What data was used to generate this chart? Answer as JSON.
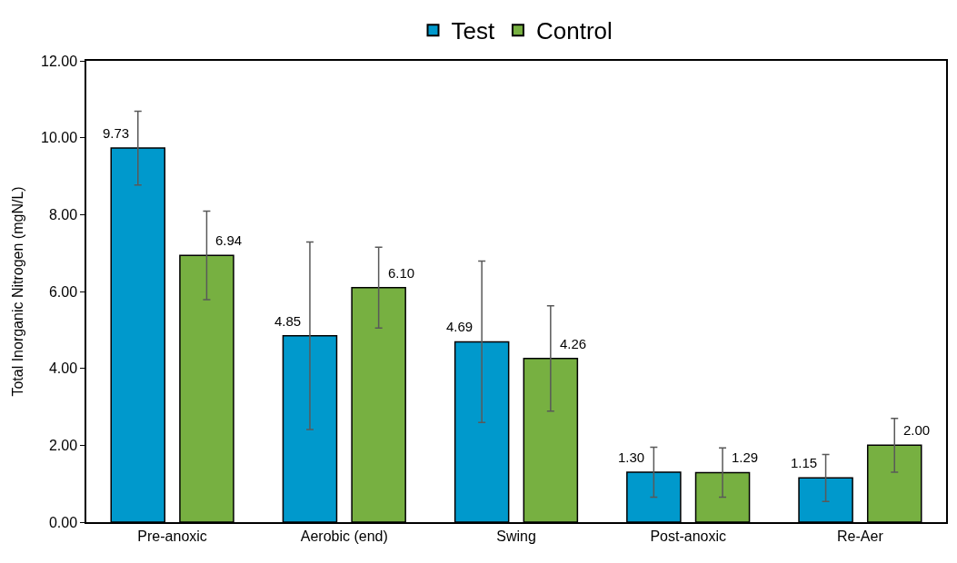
{
  "chart_data": {
    "type": "bar",
    "ylabel": "Total Inorganic Nitrogen (mgN/L)",
    "categories": [
      "Pre-anoxic",
      "Aerobic (end)",
      "Swing",
      "Post-anoxic",
      "Re-Aer"
    ],
    "series": [
      {
        "name": "Test",
        "color": "#0099cc",
        "values": [
          9.73,
          4.85,
          4.69,
          1.3,
          1.15
        ],
        "value_labels": [
          "9.73",
          "4.85",
          "4.69",
          "1.30",
          "1.15"
        ],
        "errors": [
          0.96,
          2.44,
          2.1,
          0.65,
          0.61
        ]
      },
      {
        "name": "Control",
        "color": "#77b041",
        "values": [
          6.94,
          6.1,
          4.26,
          1.29,
          2.0
        ],
        "value_labels": [
          "6.94",
          "6.10",
          "4.26",
          "1.29",
          "2.00"
        ],
        "errors": [
          1.15,
          1.05,
          1.37,
          0.64,
          0.7
        ]
      }
    ],
    "ylim": [
      0,
      12
    ],
    "yticks": [
      {
        "value": 0,
        "label": "0.00"
      },
      {
        "value": 2,
        "label": "2.00"
      },
      {
        "value": 4,
        "label": "4.00"
      },
      {
        "value": 6,
        "label": "6.00"
      },
      {
        "value": 8,
        "label": "8.00"
      },
      {
        "value": 10,
        "label": "10.00"
      },
      {
        "value": 12,
        "label": "12.00"
      }
    ],
    "grid": false,
    "legend": "top"
  }
}
